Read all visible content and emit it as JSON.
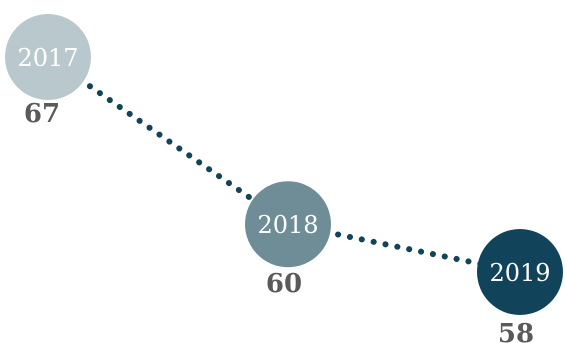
{
  "chart_data": {
    "type": "scatter",
    "connector": "dotted",
    "points": [
      {
        "x": "2017",
        "y": 67,
        "label": "2017",
        "value_label": "67",
        "color": "#b9c8cd"
      },
      {
        "x": "2018",
        "y": 60,
        "label": "2018",
        "value_label": "60",
        "color": "#6e8d97"
      },
      {
        "x": "2019",
        "y": 58,
        "label": "2019",
        "value_label": "58",
        "color": "#11445a"
      }
    ],
    "line_color": "#11445a",
    "title": "",
    "xlabel": "",
    "ylabel": "",
    "grid": false,
    "legend": "none"
  }
}
